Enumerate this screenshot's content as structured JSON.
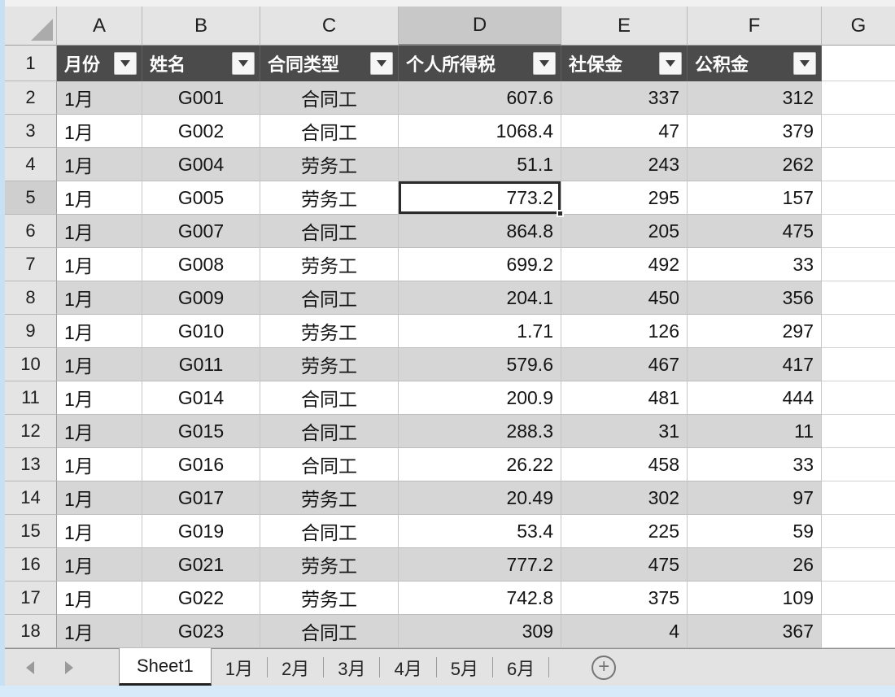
{
  "colors": {
    "table_header_bg": "#4B4B4B",
    "table_header_text": "#FFFFFF",
    "banded_row_bg": "#D6D6D6",
    "grid_header_bg": "#E4E4E4",
    "selected_header_bg": "#C8C8C8",
    "active_cell_border": "#2B2B2B",
    "edge_strip_blue": "#C7E0F3"
  },
  "icons": {
    "filter_button": "dropdown-arrow",
    "nav_left": "left-arrow",
    "nav_right": "right-arrow",
    "add_sheet": "plus-circle",
    "select_all": "corner-triangle"
  },
  "spreadsheet": {
    "column_letters": [
      "A",
      "B",
      "C",
      "D",
      "E",
      "F",
      "G"
    ],
    "selection": {
      "cell": "D5",
      "column": "D",
      "row": 5,
      "value": "773.2"
    },
    "header_row": {
      "row_number": "1",
      "columns": [
        {
          "label": "月份"
        },
        {
          "label": "姓名"
        },
        {
          "label": "合同类型"
        },
        {
          "label": "个人所得税"
        },
        {
          "label": "社保金"
        },
        {
          "label": "公积金"
        }
      ]
    },
    "rows": [
      {
        "n": "2",
        "month": "1月",
        "name": "G001",
        "type": "合同工",
        "tax": "607.6",
        "social": "337",
        "fund": "312"
      },
      {
        "n": "3",
        "month": "1月",
        "name": "G002",
        "type": "合同工",
        "tax": "1068.4",
        "social": "47",
        "fund": "379"
      },
      {
        "n": "4",
        "month": "1月",
        "name": "G004",
        "type": "劳务工",
        "tax": "51.1",
        "social": "243",
        "fund": "262"
      },
      {
        "n": "5",
        "month": "1月",
        "name": "G005",
        "type": "劳务工",
        "tax": "773.2",
        "social": "295",
        "fund": "157"
      },
      {
        "n": "6",
        "month": "1月",
        "name": "G007",
        "type": "合同工",
        "tax": "864.8",
        "social": "205",
        "fund": "475"
      },
      {
        "n": "7",
        "month": "1月",
        "name": "G008",
        "type": "劳务工",
        "tax": "699.2",
        "social": "492",
        "fund": "33"
      },
      {
        "n": "8",
        "month": "1月",
        "name": "G009",
        "type": "合同工",
        "tax": "204.1",
        "social": "450",
        "fund": "356"
      },
      {
        "n": "9",
        "month": "1月",
        "name": "G010",
        "type": "劳务工",
        "tax": "1.71",
        "social": "126",
        "fund": "297"
      },
      {
        "n": "10",
        "month": "1月",
        "name": "G011",
        "type": "劳务工",
        "tax": "579.6",
        "social": "467",
        "fund": "417"
      },
      {
        "n": "11",
        "month": "1月",
        "name": "G014",
        "type": "合同工",
        "tax": "200.9",
        "social": "481",
        "fund": "444"
      },
      {
        "n": "12",
        "month": "1月",
        "name": "G015",
        "type": "合同工",
        "tax": "288.3",
        "social": "31",
        "fund": "11"
      },
      {
        "n": "13",
        "month": "1月",
        "name": "G016",
        "type": "合同工",
        "tax": "26.22",
        "social": "458",
        "fund": "33"
      },
      {
        "n": "14",
        "month": "1月",
        "name": "G017",
        "type": "劳务工",
        "tax": "20.49",
        "social": "302",
        "fund": "97"
      },
      {
        "n": "15",
        "month": "1月",
        "name": "G019",
        "type": "合同工",
        "tax": "53.4",
        "social": "225",
        "fund": "59"
      },
      {
        "n": "16",
        "month": "1月",
        "name": "G021",
        "type": "劳务工",
        "tax": "777.2",
        "social": "475",
        "fund": "26"
      },
      {
        "n": "17",
        "month": "1月",
        "name": "G022",
        "type": "劳务工",
        "tax": "742.8",
        "social": "375",
        "fund": "109"
      },
      {
        "n": "18",
        "month": "1月",
        "name": "G023",
        "type": "合同工",
        "tax": "309",
        "social": "4",
        "fund": "367"
      }
    ]
  },
  "tab_bar": {
    "tabs": [
      {
        "label": "Sheet1",
        "active": true
      },
      {
        "label": "1月"
      },
      {
        "label": "2月"
      },
      {
        "label": "3月"
      },
      {
        "label": "4月"
      },
      {
        "label": "5月"
      },
      {
        "label": "6月"
      }
    ],
    "add_sheet_label": "+"
  }
}
